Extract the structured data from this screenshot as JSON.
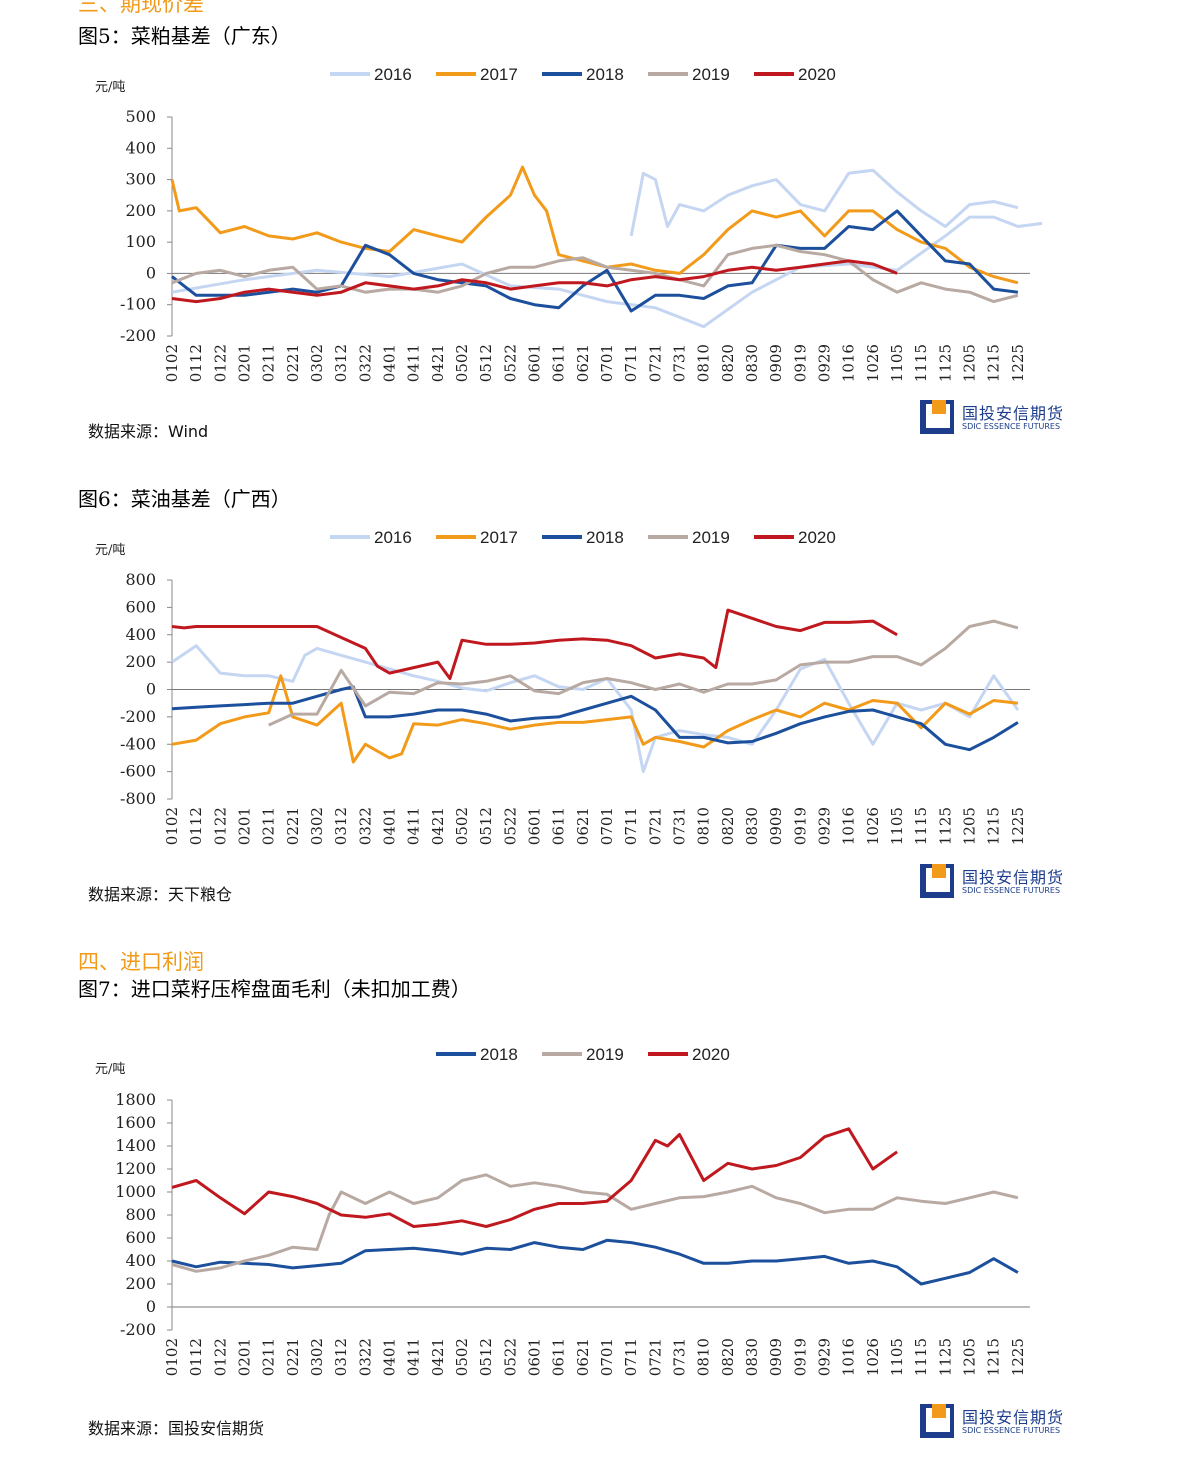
{
  "header": {
    "section3_title": "三、期现价差",
    "section4_title": "四、进口利润"
  },
  "logo": {
    "name_cn": "国投安信期货",
    "name_en": "SDIC ESSENCE FUTURES",
    "colors": {
      "blue": "#1d3d8c",
      "orange": "#f29a1a"
    }
  },
  "colors": {
    "2016": "#c5d6f2",
    "2017": "#f29a1a",
    "2018": "#1c4f9c",
    "2019": "#b8aaa2",
    "2020": "#c0181f"
  },
  "x_ticks": [
    "0102",
    "0112",
    "0122",
    "0201",
    "0211",
    "0221",
    "0302",
    "0312",
    "0322",
    "0401",
    "0411",
    "0421",
    "0502",
    "0512",
    "0522",
    "0601",
    "0611",
    "0621",
    "0701",
    "0711",
    "0721",
    "0731",
    "0810",
    "0820",
    "0830",
    "0909",
    "0919",
    "0929",
    "1016",
    "1026",
    "1105",
    "1115",
    "1125",
    "1205",
    "1215",
    "1225"
  ],
  "chart_data": [
    {
      "type": "line",
      "title": "图5：菜粕基差（广东）",
      "unit": "元/吨",
      "source": "数据来源：Wind",
      "ylim": [
        -200,
        500
      ],
      "yticks": [
        -200,
        -100,
        0,
        100,
        200,
        300,
        400,
        500
      ],
      "legend_position": "top",
      "series": [
        {
          "name": "2016",
          "x": [
            0,
            3,
            6,
            9,
            12,
            14,
            16,
            18,
            20,
            22,
            24,
            26,
            28,
            30,
            32,
            33,
            34,
            35,
            36
          ],
          "values": [
            -60,
            -20,
            10,
            -10,
            30,
            -40,
            -50,
            -90,
            -110,
            -170,
            -60,
            20,
            30,
            10,
            120,
            180,
            180,
            150,
            160
          ]
        },
        {
          "name": "2016b",
          "x": [
            19,
            19.5,
            20,
            20.5,
            21,
            22,
            23,
            24,
            25,
            26,
            27,
            28,
            29,
            30,
            31,
            32,
            33,
            34,
            35
          ],
          "values": [
            120,
            320,
            300,
            150,
            220,
            200,
            250,
            280,
            300,
            220,
            200,
            320,
            330,
            260,
            200,
            150,
            220,
            230,
            210
          ]
        },
        {
          "name": "2017",
          "x": [
            0,
            0.3,
            1,
            2,
            3,
            4,
            5,
            6,
            7,
            8,
            9,
            10,
            11,
            12,
            13,
            14,
            14.5,
            15,
            15.5,
            16,
            17,
            18,
            19,
            20,
            21,
            22,
            23,
            24,
            25,
            26,
            27,
            28,
            29,
            30,
            31,
            32,
            33,
            34,
            35
          ],
          "values": [
            300,
            200,
            210,
            130,
            150,
            120,
            110,
            130,
            100,
            80,
            70,
            140,
            120,
            100,
            180,
            250,
            340,
            250,
            200,
            60,
            40,
            20,
            30,
            10,
            0,
            60,
            140,
            200,
            180,
            200,
            120,
            200,
            200,
            140,
            100,
            80,
            20,
            -10,
            -30
          ]
        },
        {
          "name": "2018",
          "x": [
            0,
            1,
            2,
            3,
            4,
            5,
            6,
            7,
            8,
            9,
            10,
            11,
            12,
            13,
            14,
            15,
            16,
            17,
            18,
            19,
            20,
            21,
            22,
            23,
            24,
            25,
            26,
            27,
            28,
            29,
            30,
            31,
            32,
            33,
            34,
            35
          ],
          "values": [
            -10,
            -70,
            -70,
            -70,
            -60,
            -50,
            -60,
            -40,
            90,
            60,
            0,
            -20,
            -30,
            -40,
            -80,
            -100,
            -110,
            -40,
            10,
            -120,
            -70,
            -70,
            -80,
            -40,
            -30,
            90,
            80,
            80,
            150,
            140,
            200,
            120,
            40,
            30,
            -50,
            -60
          ]
        },
        {
          "name": "2019",
          "x": [
            0,
            1,
            2,
            3,
            4,
            5,
            6,
            7,
            8,
            9,
            10,
            11,
            12,
            13,
            14,
            15,
            16,
            17,
            18,
            19,
            20,
            21,
            22,
            23,
            24,
            25,
            26,
            27,
            28,
            29,
            30,
            31,
            32,
            33,
            34,
            35
          ],
          "values": [
            -30,
            0,
            10,
            -10,
            10,
            20,
            -50,
            -40,
            -60,
            -50,
            -50,
            -60,
            -40,
            0,
            20,
            20,
            40,
            50,
            20,
            10,
            0,
            -20,
            -40,
            60,
            80,
            90,
            70,
            60,
            40,
            -20,
            -60,
            -30,
            -50,
            -60,
            -90,
            -70
          ]
        },
        {
          "name": "2020",
          "x": [
            0,
            1,
            2,
            3,
            4,
            5,
            6,
            7,
            8,
            9,
            10,
            11,
            12,
            13,
            14,
            15,
            16,
            17,
            18,
            19,
            20,
            21,
            22,
            23,
            24,
            25,
            26,
            27,
            28,
            29,
            30
          ],
          "values": [
            -80,
            -90,
            -80,
            -60,
            -50,
            -60,
            -70,
            -60,
            -30,
            -40,
            -50,
            -40,
            -20,
            -30,
            -50,
            -40,
            -30,
            -30,
            -40,
            -20,
            -10,
            -20,
            -10,
            10,
            20,
            10,
            20,
            30,
            40,
            30,
            0
          ]
        }
      ]
    },
    {
      "type": "line",
      "title": "图6：菜油基差（广西）",
      "unit": "元/吨",
      "source": "数据来源：天下粮仓",
      "ylim": [
        -800,
        800
      ],
      "yticks": [
        -800,
        -600,
        -400,
        -200,
        0,
        200,
        400,
        600,
        800
      ],
      "legend_position": "top",
      "series": [
        {
          "name": "2016",
          "x": [
            0,
            1,
            2,
            3,
            4,
            5,
            5.5,
            6,
            7,
            8,
            9,
            10,
            11,
            12,
            13,
            14,
            15,
            16,
            17,
            18,
            19,
            19.5,
            20,
            21,
            22,
            23,
            24,
            25,
            26,
            27,
            28,
            29,
            30,
            31,
            32,
            33,
            34,
            35
          ],
          "values": [
            200,
            320,
            120,
            100,
            100,
            60,
            250,
            300,
            250,
            200,
            150,
            100,
            60,
            10,
            -10,
            50,
            100,
            20,
            0,
            80,
            -150,
            -600,
            -350,
            -300,
            -330,
            -350,
            -400,
            -150,
            150,
            220,
            -100,
            -400,
            -100,
            -150,
            -100,
            -200,
            100,
            -150
          ]
        },
        {
          "name": "2017",
          "x": [
            0,
            1,
            2,
            3,
            4,
            4.5,
            5,
            6,
            7,
            7.5,
            8,
            9,
            9.5,
            10,
            11,
            12,
            13,
            14,
            15,
            16,
            17,
            18,
            19,
            19.5,
            20,
            21,
            22,
            23,
            24,
            25,
            26,
            27,
            28,
            29,
            30,
            31,
            32,
            33,
            34,
            35
          ],
          "values": [
            -400,
            -370,
            -250,
            -200,
            -170,
            100,
            -200,
            -260,
            -100,
            -530,
            -400,
            -500,
            -470,
            -250,
            -260,
            -220,
            -250,
            -290,
            -260,
            -240,
            -240,
            -220,
            -200,
            -400,
            -350,
            -380,
            -420,
            -300,
            -220,
            -150,
            -200,
            -100,
            -150,
            -80,
            -100,
            -280,
            -100,
            -180,
            -80,
            -100
          ]
        },
        {
          "name": "2018",
          "x": [
            0,
            1,
            2,
            3,
            4,
            5,
            6,
            7,
            7.5,
            8,
            9,
            10,
            11,
            12,
            13,
            14,
            15,
            16,
            17,
            18,
            19,
            20,
            21,
            22,
            23,
            24,
            25,
            26,
            27,
            28,
            29,
            30,
            31,
            32,
            33,
            34,
            35
          ],
          "values": [
            -140,
            -130,
            -120,
            -110,
            -100,
            -100,
            -50,
            0,
            20,
            -200,
            -200,
            -180,
            -150,
            -150,
            -180,
            -230,
            -210,
            -200,
            -150,
            -100,
            -50,
            -150,
            -350,
            -350,
            -390,
            -380,
            -320,
            -250,
            -200,
            -160,
            -150,
            -200,
            -250,
            -400,
            -440,
            -350,
            -240
          ]
        },
        {
          "name": "2019",
          "x": [
            4,
            5,
            6,
            7,
            8,
            9,
            10,
            11,
            12,
            13,
            14,
            15,
            16,
            17,
            18,
            19,
            20,
            21,
            22,
            23,
            24,
            25,
            26,
            27,
            28,
            29,
            30,
            31,
            32,
            33,
            34,
            35
          ],
          "values": [
            -260,
            -180,
            -180,
            140,
            -120,
            -20,
            -30,
            50,
            40,
            60,
            100,
            -10,
            -30,
            50,
            80,
            50,
            0,
            40,
            -20,
            40,
            40,
            70,
            180,
            200,
            200,
            240,
            240,
            180,
            300,
            460,
            500,
            450
          ]
        },
        {
          "name": "2020",
          "x": [
            0,
            0.5,
            1,
            2,
            3,
            4,
            5,
            6,
            7,
            8,
            8.5,
            9,
            10,
            11,
            11.5,
            12,
            13,
            14,
            15,
            16,
            17,
            18,
            19,
            20,
            21,
            22,
            22.5,
            23,
            24,
            25,
            26,
            27,
            28,
            29,
            30
          ],
          "values": [
            460,
            450,
            460,
            460,
            460,
            460,
            460,
            460,
            380,
            300,
            170,
            120,
            160,
            200,
            80,
            360,
            330,
            330,
            340,
            360,
            370,
            360,
            320,
            230,
            260,
            230,
            160,
            580,
            520,
            460,
            430,
            490,
            490,
            500,
            400
          ]
        }
      ]
    },
    {
      "type": "line",
      "title": "图7：进口菜籽压榨盘面毛利（未扣加工费）",
      "unit": "元/吨",
      "source": "数据来源：国投安信期货",
      "ylim": [
        -200,
        1800
      ],
      "yticks": [
        -200,
        0,
        200,
        400,
        600,
        800,
        1000,
        1200,
        1400,
        1600,
        1800
      ],
      "legend_position": "top",
      "series": [
        {
          "name": "2018",
          "x": [
            0,
            1,
            2,
            3,
            4,
            5,
            6,
            7,
            8,
            9,
            10,
            11,
            12,
            13,
            14,
            15,
            16,
            17,
            18,
            19,
            20,
            21,
            22,
            23,
            24,
            25,
            26,
            27,
            28,
            29,
            30,
            31,
            32,
            33,
            34,
            35
          ],
          "values": [
            400,
            350,
            390,
            380,
            370,
            340,
            360,
            380,
            490,
            500,
            510,
            490,
            460,
            510,
            500,
            560,
            520,
            500,
            580,
            560,
            520,
            460,
            380,
            380,
            400,
            400,
            420,
            440,
            380,
            400,
            350,
            200,
            250,
            300,
            420,
            300
          ]
        },
        {
          "name": "2019",
          "x": [
            0,
            1,
            2,
            3,
            4,
            5,
            6,
            6.5,
            7,
            8,
            9,
            10,
            11,
            12,
            13,
            14,
            15,
            16,
            17,
            18,
            19,
            20,
            21,
            22,
            23,
            24,
            25,
            26,
            27,
            28,
            29,
            30,
            31,
            32,
            33,
            34,
            35
          ],
          "values": [
            370,
            310,
            340,
            400,
            450,
            520,
            500,
            800,
            1000,
            900,
            1000,
            900,
            950,
            1100,
            1150,
            1050,
            1080,
            1050,
            1000,
            980,
            850,
            900,
            950,
            960,
            1000,
            1050,
            950,
            900,
            820,
            850,
            850,
            950,
            920,
            900,
            950,
            1000,
            950
          ]
        },
        {
          "name": "2020",
          "x": [
            0,
            1,
            2,
            3,
            4,
            5,
            6,
            7,
            8,
            9,
            10,
            11,
            12,
            13,
            14,
            15,
            16,
            17,
            18,
            19,
            20,
            20.5,
            21,
            22,
            23,
            24,
            25,
            26,
            27,
            28,
            29,
            30
          ],
          "values": [
            1040,
            1100,
            950,
            810,
            1000,
            960,
            900,
            800,
            780,
            810,
            700,
            720,
            750,
            700,
            760,
            850,
            900,
            900,
            920,
            1100,
            1450,
            1400,
            1500,
            1100,
            1250,
            1200,
            1230,
            1300,
            1480,
            1550,
            1200,
            1350
          ]
        }
      ]
    }
  ]
}
